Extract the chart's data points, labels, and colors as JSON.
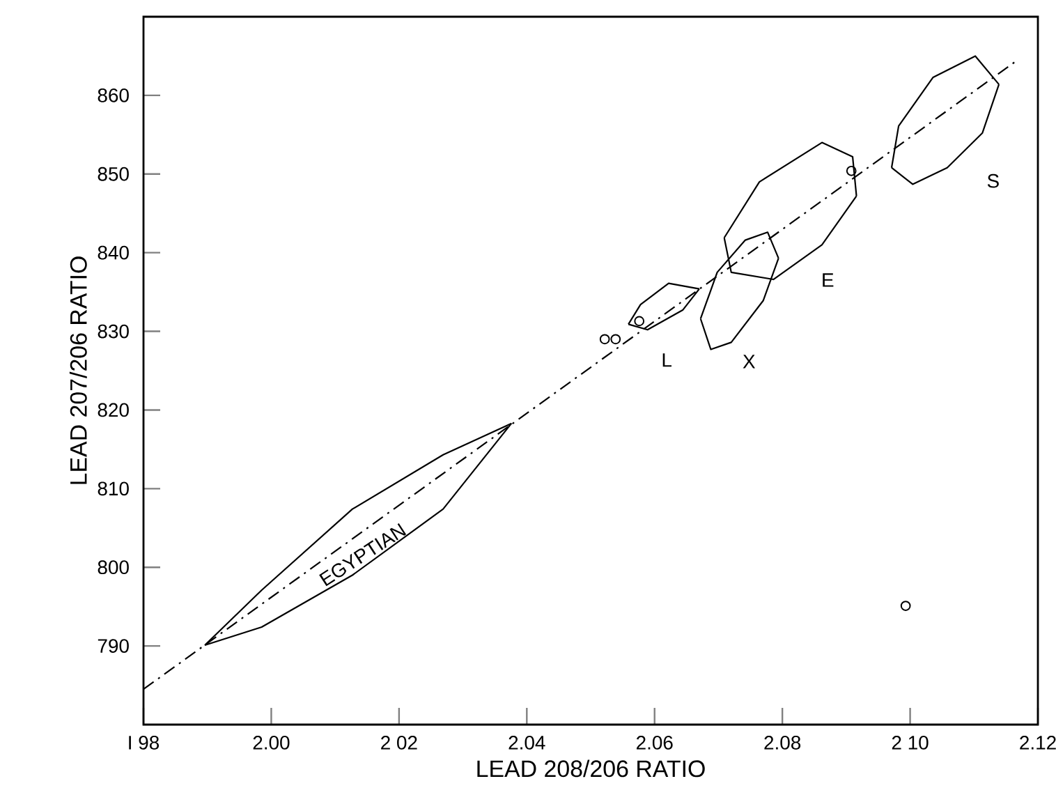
{
  "chart_data": {
    "type": "scatter",
    "xlabel": "LEAD 208/206 RATIO",
    "ylabel": "LEAD 207/206 RATIO",
    "xlim": [
      1.98,
      2.12
    ],
    "ylim": [
      780,
      870
    ],
    "xticks": [
      {
        "value": 1.98,
        "label": "I 98"
      },
      "2.00",
      {
        "value": 2.02,
        "label": "2 02"
      },
      2.04,
      2.06,
      2.08,
      {
        "value": 2.1,
        "label": "2 10"
      },
      2.12
    ],
    "yticks": [
      790,
      800,
      810,
      820,
      830,
      840,
      850,
      860
    ],
    "grid": false,
    "series": [
      {
        "type": "line",
        "line_style": "dashdot",
        "color": "#000000",
        "x": [
          1.98,
          2.117
        ],
        "values": [
          784.5,
          864.6
        ]
      },
      {
        "type": "line",
        "line_style": "solid",
        "color": "#000000",
        "x": [
          1.9896,
          1.9985,
          2.0127,
          2.0269,
          2.0376
        ],
        "values": [
          790.1,
          797.1,
          807.4,
          814.3,
          818.3
        ]
      },
      {
        "type": "line",
        "line_style": "solid",
        "color": "#000000",
        "x": [
          1.9896,
          1.9985,
          2.0127,
          2.0269,
          2.0376
        ],
        "values": [
          790.1,
          792.4,
          799.0,
          807.4,
          818.3
        ]
      },
      {
        "type": "line",
        "line_style": "solid",
        "color": "#000000",
        "x": [
          2.0559,
          2.0578,
          2.0622,
          2.067
        ],
        "values": [
          830.9,
          833.4,
          836.1,
          835.4
        ]
      },
      {
        "type": "line",
        "line_style": "solid",
        "color": "#000000",
        "x": [
          2.0559,
          2.0589,
          2.0644,
          2.067
        ],
        "values": [
          830.9,
          830.2,
          832.7,
          835.4
        ]
      },
      {
        "type": "line",
        "line_style": "solid",
        "color": "#000000",
        "x": [
          2.0672,
          2.0698,
          2.0742,
          2.0777,
          2.0794
        ],
        "values": [
          831.6,
          837.5,
          841.6,
          842.6,
          839.3
        ]
      },
      {
        "type": "line",
        "line_style": "solid",
        "color": "#000000",
        "x": [
          2.0672,
          2.0688,
          2.072,
          2.077,
          2.0794
        ],
        "values": [
          831.6,
          827.7,
          828.6,
          833.9,
          839.3
        ]
      },
      {
        "type": "line",
        "line_style": "solid",
        "color": "#000000",
        "x": [
          2.0709,
          2.0764,
          2.0862,
          2.091,
          2.0916
        ],
        "values": [
          841.9,
          849.0,
          854.0,
          852.2,
          847.2
        ]
      },
      {
        "type": "line",
        "line_style": "solid",
        "color": "#000000",
        "x": [
          2.0709,
          2.072,
          2.0786,
          2.0862,
          2.0916
        ],
        "values": [
          841.9,
          837.5,
          836.6,
          841.0,
          847.2
        ]
      },
      {
        "type": "line",
        "line_style": "solid",
        "color": "#000000",
        "x": [
          2.0971,
          2.0982,
          2.1036,
          2.1102,
          2.1139
        ],
        "values": [
          850.8,
          856.1,
          862.3,
          865.0,
          861.4
        ]
      },
      {
        "type": "line",
        "line_style": "solid",
        "color": "#000000",
        "x": [
          2.0971,
          2.1004,
          2.1058,
          2.1113,
          2.1139
        ],
        "values": [
          850.8,
          848.7,
          850.8,
          855.2,
          861.4
        ]
      },
      {
        "marker": "circle",
        "color": "#000000",
        "x": [
          2.0522,
          2.0539,
          2.0576,
          2.0908,
          2.0993
        ],
        "values": [
          829.0,
          829.0,
          831.3,
          850.4,
          795.1
        ]
      }
    ],
    "annotations": [
      "EGYPTIAN",
      "L",
      "X",
      "E",
      "S"
    ]
  }
}
